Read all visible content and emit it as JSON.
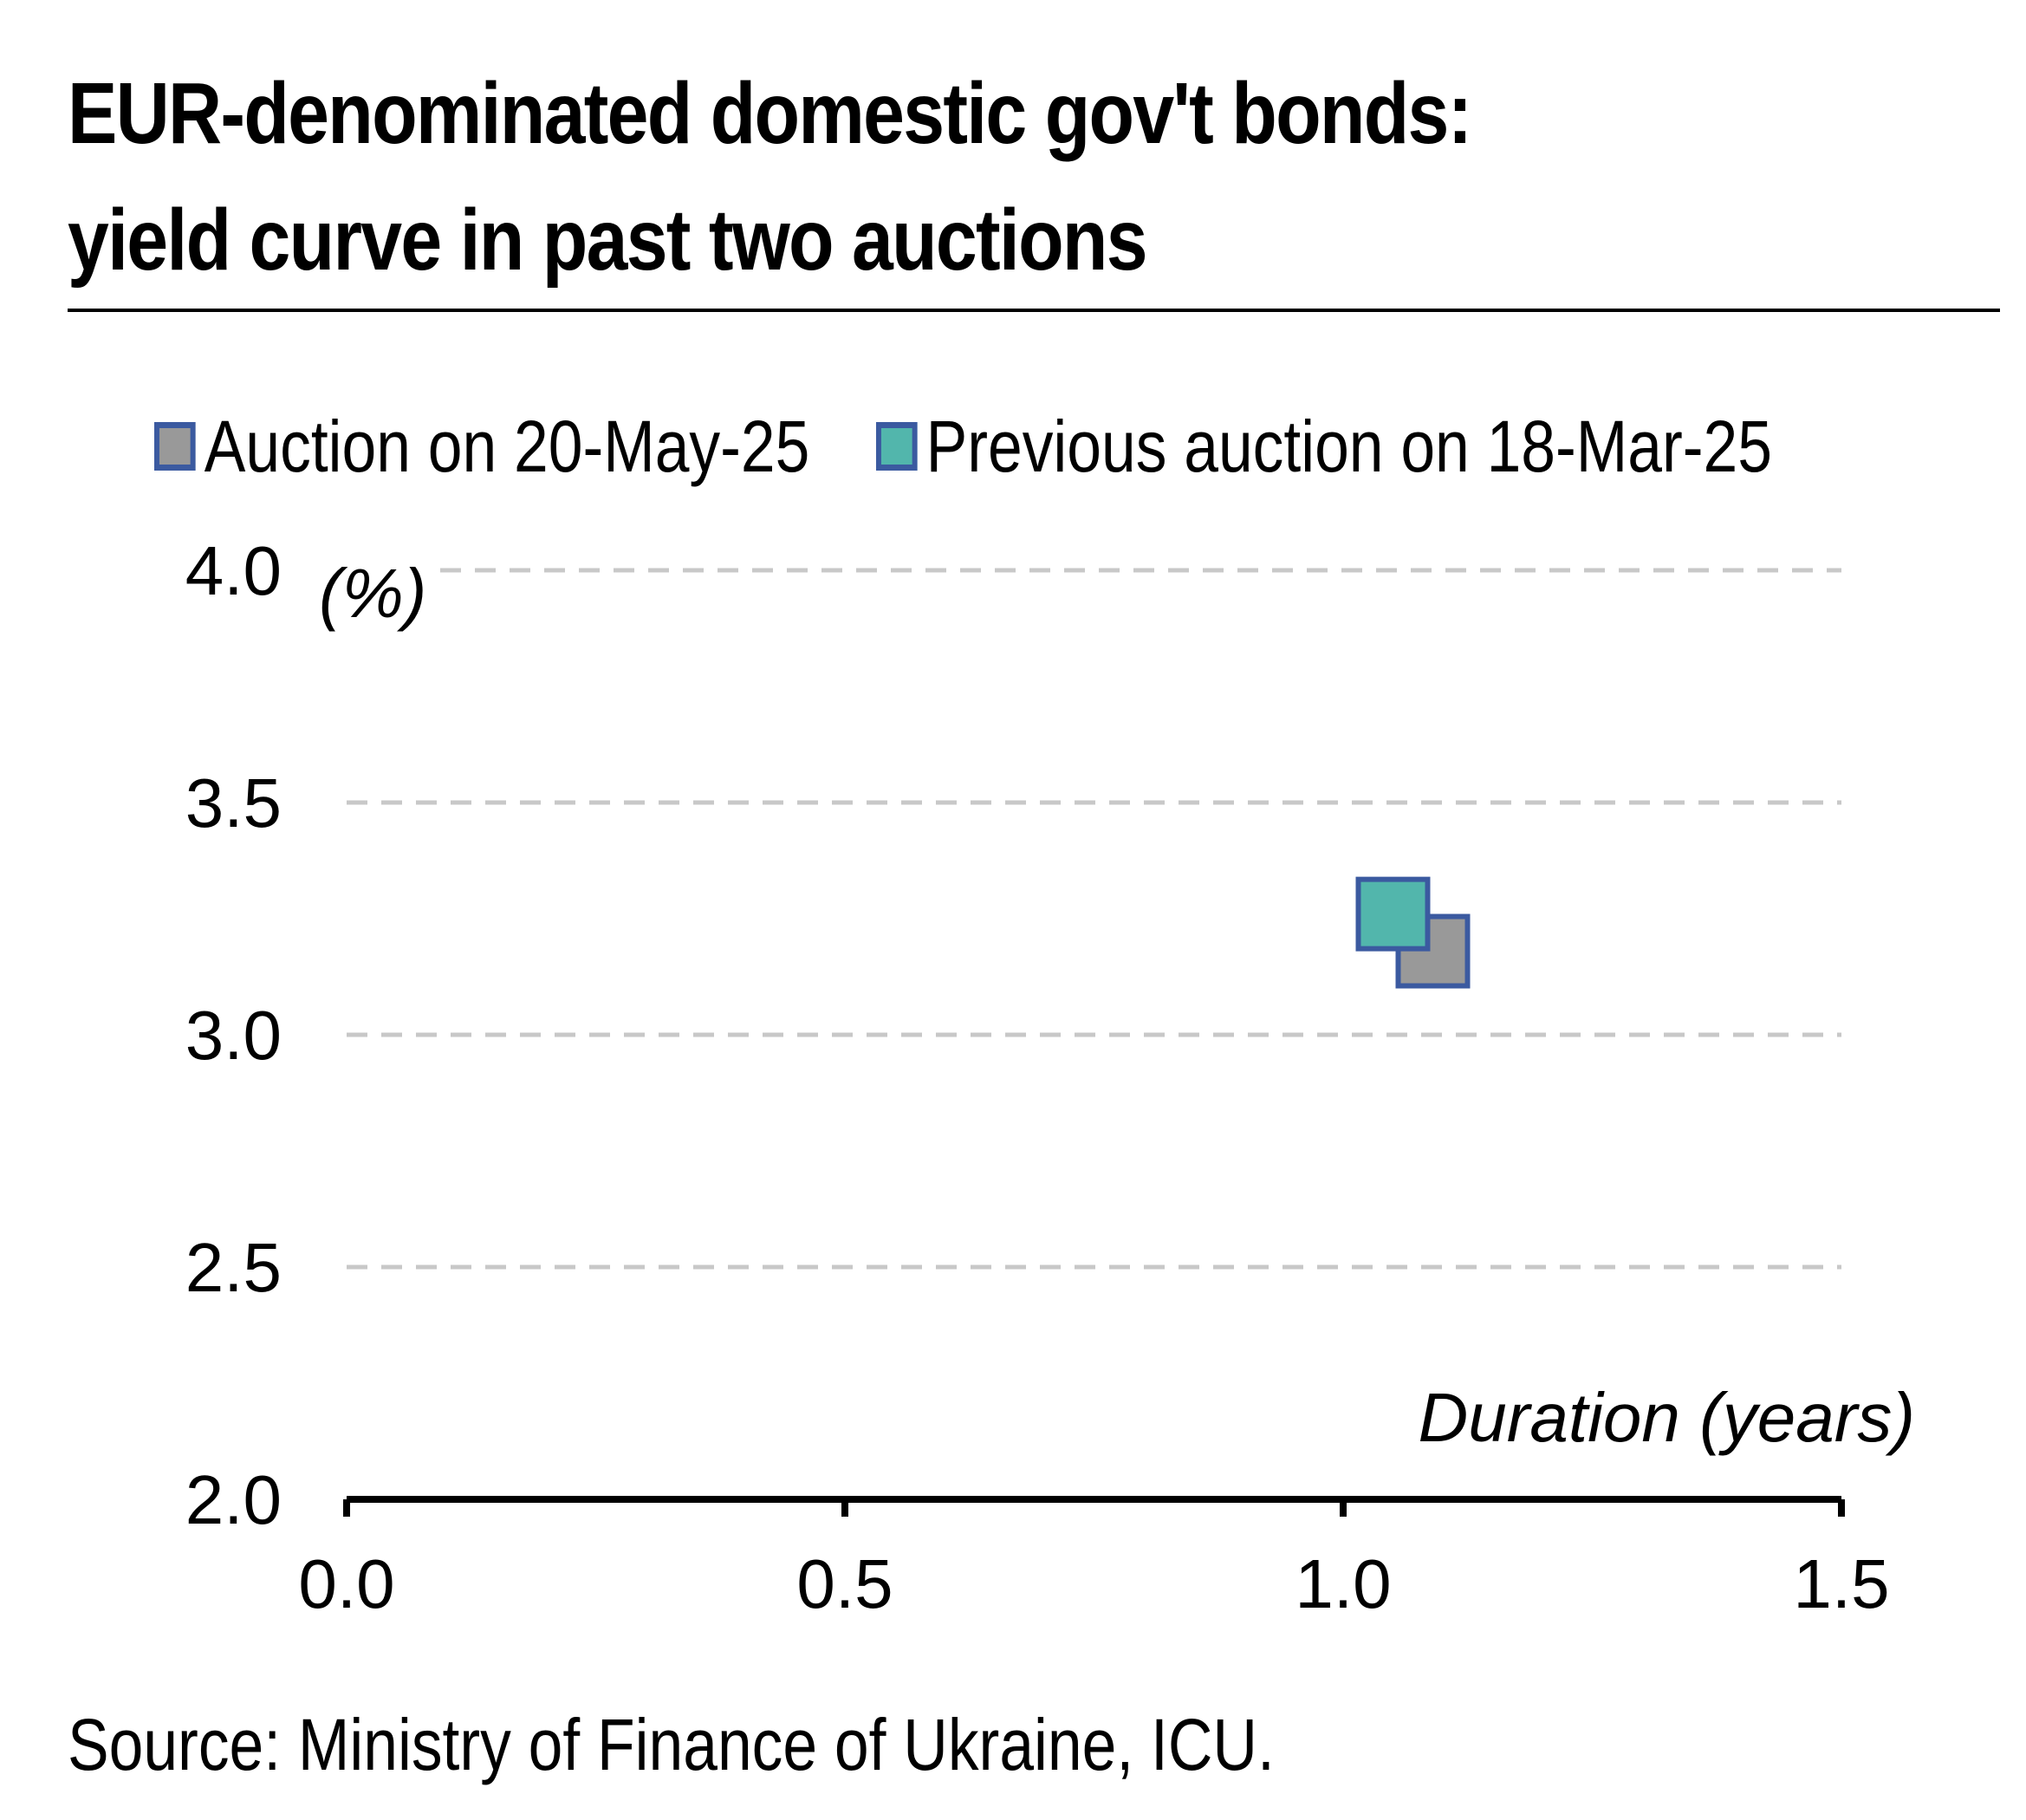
{
  "title_lines": [
    "EUR-denominated domestic gov't bonds:",
    "yield curve in past two auctions"
  ],
  "source": "Source: Ministry of Finance of Ukraine, ICU.",
  "colors": {
    "grid": "#c8c8c8",
    "axis": "#000000",
    "marker_border": "#3b5aa0"
  },
  "chart_data": {
    "type": "scatter",
    "title": "EUR-denominated domestic gov't bonds: yield curve in past two auctions",
    "xlabel": "Duration (years)",
    "ylabel": "(%)",
    "xlim": [
      0.0,
      1.5
    ],
    "ylim": [
      2.0,
      4.0
    ],
    "x_ticks": [
      "0.0",
      "0.5",
      "1.0",
      "1.5"
    ],
    "y_ticks": [
      "2.0",
      "2.5",
      "3.0",
      "3.5",
      "4.0"
    ],
    "grid": true,
    "legend_position": "top",
    "series": [
      {
        "name": "Auction on 20-May-25",
        "color": "#999999",
        "border": "#3b5aa0",
        "marker": "square",
        "points": [
          {
            "x": 1.09,
            "y": 3.18
          }
        ]
      },
      {
        "name": "Previous auction on 18-Mar-25",
        "color": "#52b6ac",
        "border": "#3b5aa0",
        "marker": "square",
        "points": [
          {
            "x": 1.05,
            "y": 3.26
          }
        ]
      }
    ]
  }
}
